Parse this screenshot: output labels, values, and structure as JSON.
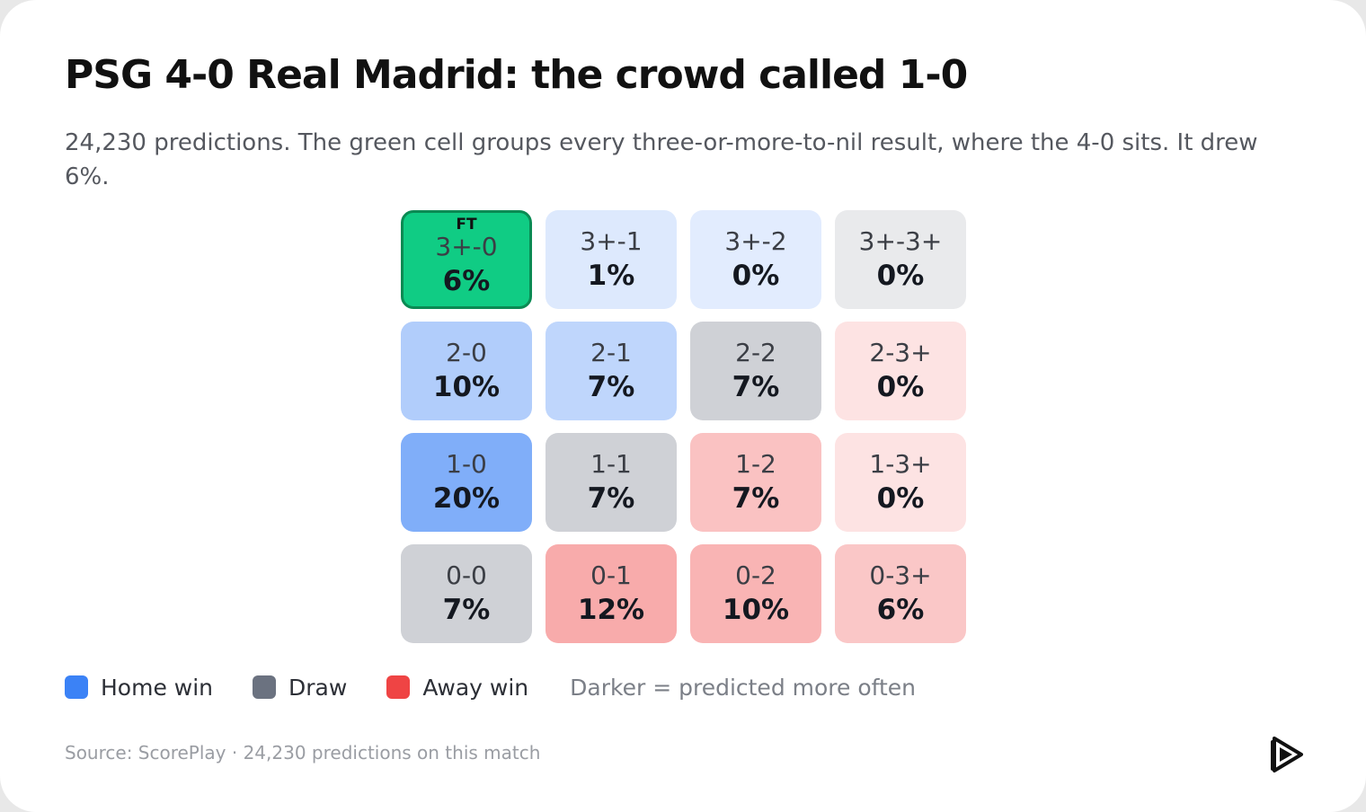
{
  "title": "PSG 4-0 Real Madrid: the crowd called 1-0",
  "subtitle": "24,230 predictions. The green cell groups every three-or-more-to-nil result, where the 4-0 sits. It drew 6%.",
  "chart_data": {
    "type": "heatmap",
    "title": "PSG 4-0 Real Madrid: the crowd called 1-0",
    "rows": [
      "3+",
      "2",
      "1",
      "0"
    ],
    "cols": [
      "0",
      "1",
      "2",
      "3+"
    ],
    "actual_result_marker": "FT",
    "cells": [
      [
        {
          "score": "3+-0",
          "pct": "6%",
          "value": 6,
          "outcome": "home",
          "actual": true
        },
        {
          "score": "3+-1",
          "pct": "1%",
          "value": 1,
          "outcome": "home"
        },
        {
          "score": "3+-2",
          "pct": "0%",
          "value": 0,
          "outcome": "home"
        },
        {
          "score": "3+-3+",
          "pct": "0%",
          "value": 0,
          "outcome": "draw"
        }
      ],
      [
        {
          "score": "2-0",
          "pct": "10%",
          "value": 10,
          "outcome": "home"
        },
        {
          "score": "2-1",
          "pct": "7%",
          "value": 7,
          "outcome": "home"
        },
        {
          "score": "2-2",
          "pct": "7%",
          "value": 7,
          "outcome": "draw"
        },
        {
          "score": "2-3+",
          "pct": "0%",
          "value": 0,
          "outcome": "away"
        }
      ],
      [
        {
          "score": "1-0",
          "pct": "20%",
          "value": 20,
          "outcome": "home"
        },
        {
          "score": "1-1",
          "pct": "7%",
          "value": 7,
          "outcome": "draw"
        },
        {
          "score": "1-2",
          "pct": "7%",
          "value": 7,
          "outcome": "away"
        },
        {
          "score": "1-3+",
          "pct": "0%",
          "value": 0,
          "outcome": "away"
        }
      ],
      [
        {
          "score": "0-0",
          "pct": "7%",
          "value": 7,
          "outcome": "draw"
        },
        {
          "score": "0-1",
          "pct": "12%",
          "value": 12,
          "outcome": "away"
        },
        {
          "score": "0-2",
          "pct": "10%",
          "value": 10,
          "outcome": "away"
        },
        {
          "score": "0-3+",
          "pct": "6%",
          "value": 6,
          "outcome": "away"
        }
      ]
    ]
  },
  "colors": {
    "home": "#3b82f6",
    "draw": "#6b7280",
    "away": "#ef4444",
    "actual": "#10cc84"
  },
  "legend": {
    "home_label": "Home win",
    "draw_label": "Draw",
    "away_label": "Away win",
    "note": "Darker = predicted more often"
  },
  "source": "Source: ScorePlay · 24,230 predictions on this match",
  "logo_icon": "scoreplay-play-logo-icon"
}
